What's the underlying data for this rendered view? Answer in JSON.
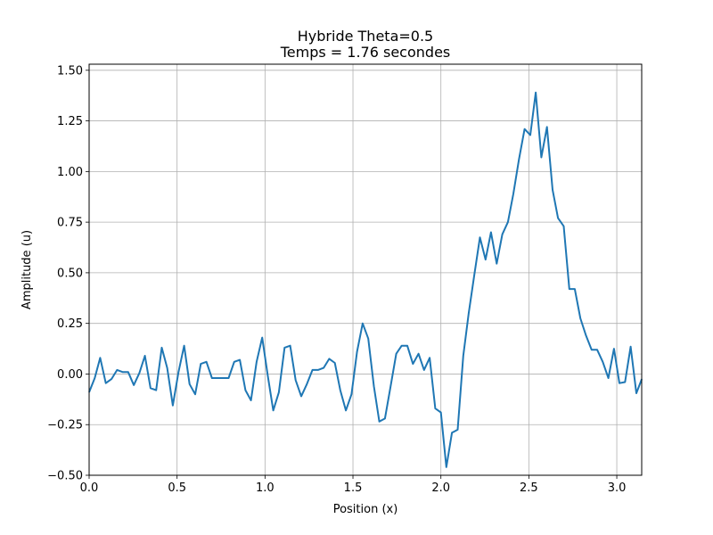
{
  "chart_data": {
    "type": "line",
    "title": "Hybride Theta=0.5",
    "subtitle": "Temps = 1.76 secondes",
    "xlabel": "Position (x)",
    "ylabel": "Amplitude (u)",
    "xlim": [
      0,
      3.1416
    ],
    "ylim": [
      -0.5,
      1.53
    ],
    "xticks": [
      0.0,
      0.5,
      1.0,
      1.5,
      2.0,
      2.5,
      3.0
    ],
    "xtick_labels": [
      "0.0",
      "0.5",
      "1.0",
      "1.5",
      "2.0",
      "2.5",
      "3.0"
    ],
    "yticks": [
      -0.5,
      -0.25,
      0.0,
      0.25,
      0.5,
      0.75,
      1.0,
      1.25,
      1.5
    ],
    "ytick_labels": [
      "−0.50",
      "−0.25",
      "0.00",
      "0.25",
      "0.50",
      "0.75",
      "1.00",
      "1.25",
      "1.50"
    ],
    "grid": true,
    "line_color": "#1f77b4",
    "series": [
      {
        "x": [
          0.0,
          0.032,
          0.063,
          0.095,
          0.127,
          0.159,
          0.19,
          0.222,
          0.254,
          0.286,
          0.317,
          0.349,
          0.381,
          0.413,
          0.444,
          0.476,
          0.508,
          0.54,
          0.571,
          0.603,
          0.635,
          0.667,
          0.698,
          0.73,
          0.762,
          0.793,
          0.825,
          0.857,
          0.889,
          0.92,
          0.952,
          0.984,
          1.016,
          1.047,
          1.079,
          1.111,
          1.143,
          1.174,
          1.206,
          1.238,
          1.27,
          1.301,
          1.333,
          1.365,
          1.397,
          1.428,
          1.46,
          1.492,
          1.523,
          1.555,
          1.587,
          1.619,
          1.65,
          1.682,
          1.714,
          1.746,
          1.777,
          1.809,
          1.841,
          1.873,
          1.904,
          1.936,
          1.968,
          2.0,
          2.031,
          2.063,
          2.095,
          2.127,
          2.158,
          2.19,
          2.222,
          2.254,
          2.285,
          2.317,
          2.349,
          2.381,
          2.412,
          2.444,
          2.476,
          2.508,
          2.539,
          2.571,
          2.603,
          2.635,
          2.666,
          2.698,
          2.73,
          2.761,
          2.793,
          2.825,
          2.857,
          2.888,
          2.92,
          2.952,
          2.984,
          3.015,
          3.047,
          3.079,
          3.111,
          3.142
        ],
        "y": [
          -0.09,
          -0.02,
          0.08,
          -0.045,
          -0.025,
          0.02,
          0.01,
          0.01,
          -0.055,
          0.005,
          0.09,
          -0.07,
          -0.08,
          0.13,
          0.03,
          -0.155,
          0.01,
          0.14,
          -0.05,
          -0.1,
          0.05,
          0.06,
          -0.02,
          -0.02,
          -0.02,
          -0.02,
          0.06,
          0.07,
          -0.08,
          -0.13,
          0.06,
          0.18,
          -0.01,
          -0.18,
          -0.09,
          0.13,
          0.14,
          -0.03,
          -0.11,
          -0.05,
          0.02,
          0.02,
          0.03,
          0.075,
          0.055,
          -0.08,
          -0.18,
          -0.1,
          0.11,
          0.25,
          0.175,
          -0.06,
          -0.235,
          -0.22,
          -0.06,
          0.1,
          0.14,
          0.14,
          0.05,
          0.1,
          0.02,
          0.08,
          -0.17,
          -0.19,
          -0.46,
          -0.29,
          -0.275,
          0.09,
          0.3,
          0.49,
          0.675,
          0.565,
          0.7,
          0.545,
          0.69,
          0.75,
          0.89,
          1.06,
          1.21,
          1.18,
          1.39,
          1.07,
          1.22,
          0.91,
          0.77,
          0.73,
          0.42,
          0.42,
          0.275,
          0.19,
          0.12,
          0.12,
          0.06,
          -0.02,
          0.125,
          -0.045,
          -0.04,
          0.135,
          -0.095,
          -0.025
        ]
      }
    ]
  }
}
